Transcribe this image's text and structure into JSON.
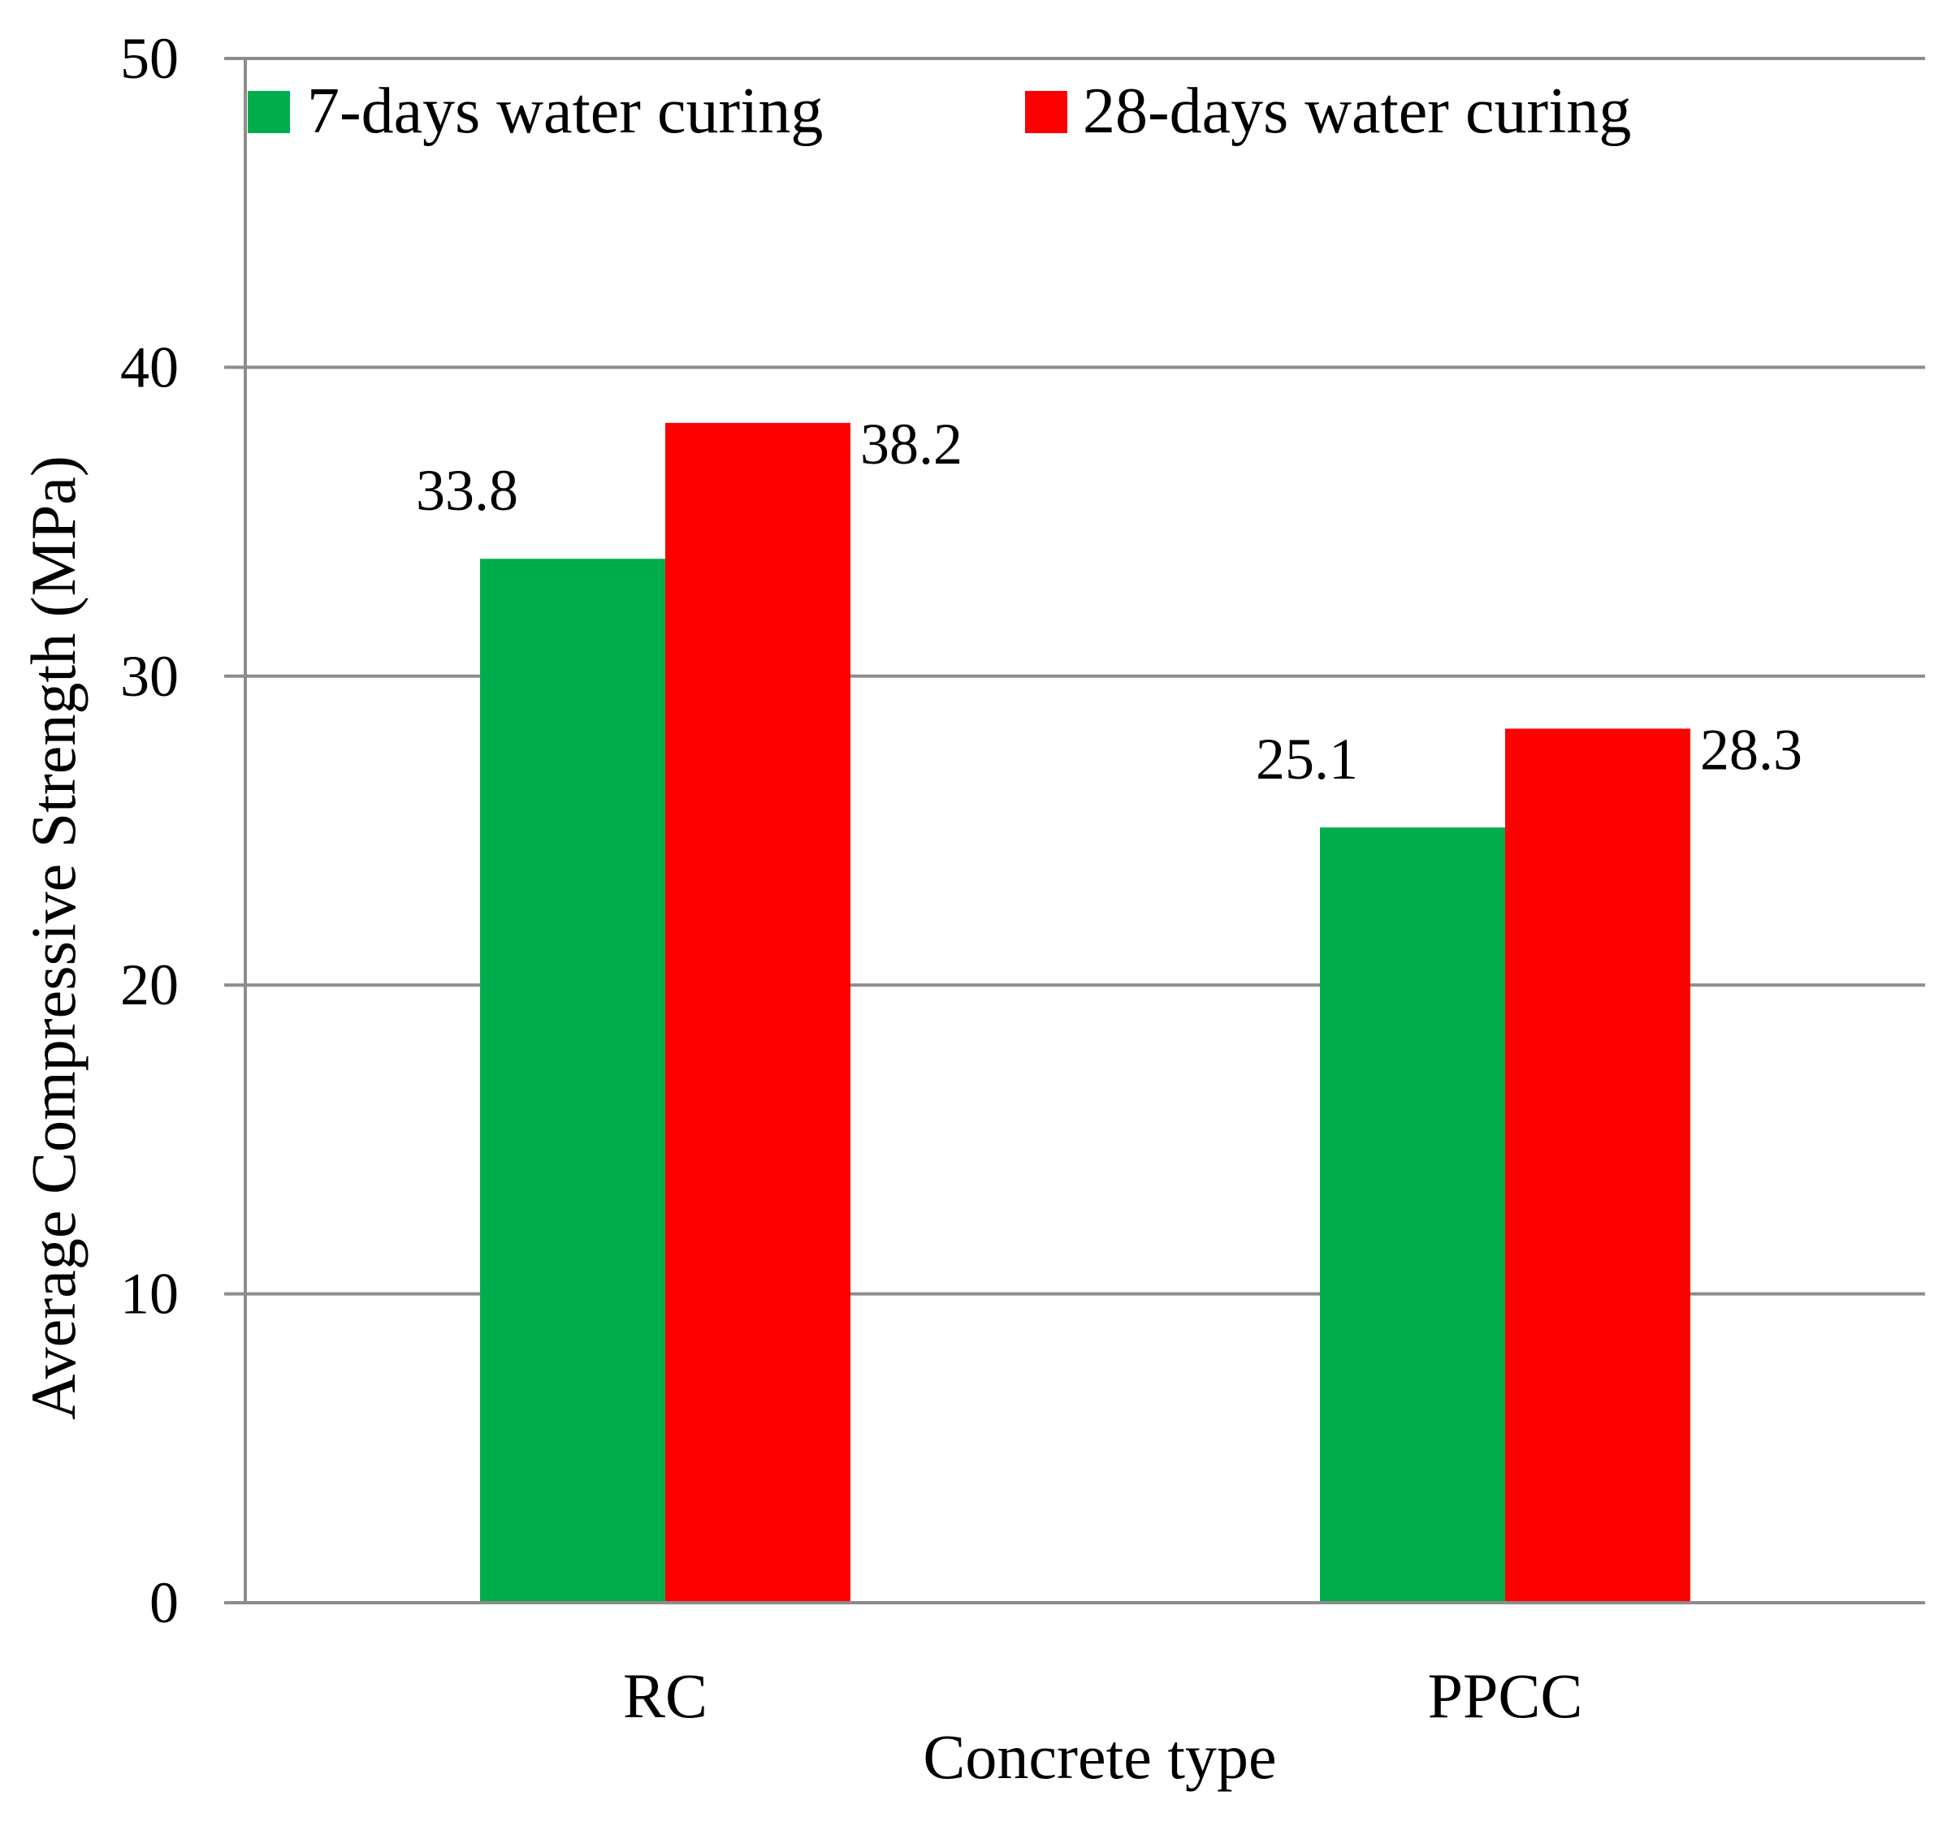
{
  "chart_data": {
    "type": "bar",
    "categories": [
      "RC",
      "PPCC"
    ],
    "series": [
      {
        "name": "7-days water curing",
        "color": "#00ad4d",
        "values": [
          33.8,
          25.1
        ]
      },
      {
        "name": "28-days water curing",
        "color": "#ff0000",
        "values": [
          38.2,
          28.3
        ]
      }
    ],
    "data_labels": [
      [
        "33.8",
        "25.1"
      ],
      [
        "38.2",
        "28.3"
      ]
    ],
    "title": "",
    "xlabel": "Concrete type",
    "ylabel": "Average Compressive Strength (MPa)",
    "ylim": [
      0,
      50
    ],
    "yticks": [
      0,
      10,
      20,
      30,
      40,
      50
    ],
    "grid": true,
    "legend_position": "top"
  }
}
